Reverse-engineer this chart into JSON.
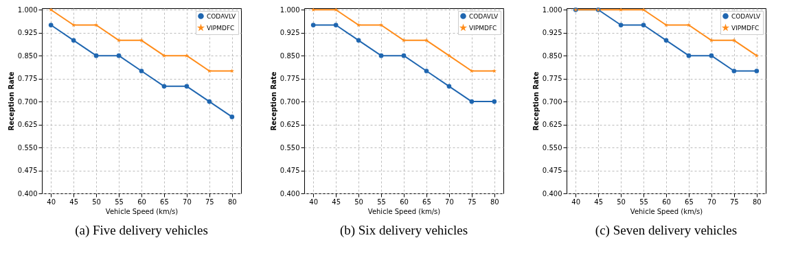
{
  "chart_data": [
    {
      "type": "line",
      "title": "(a)  Five delivery vehicles",
      "xlabel": "Vehicle Speed (km/s)",
      "ylabel": "Reception Rate",
      "x": [
        40,
        45,
        50,
        55,
        60,
        65,
        70,
        75,
        80
      ],
      "xlim": [
        38,
        82
      ],
      "xticks": [
        40,
        45,
        50,
        55,
        60,
        65,
        70,
        75,
        80
      ],
      "ylim": [
        0.4,
        1.005
      ],
      "yticks": [
        {
          "value": 0.4,
          "label": "0.400"
        },
        {
          "value": 0.475,
          "label": "0.475"
        },
        {
          "value": 0.55,
          "label": "0.550"
        },
        {
          "value": 0.625,
          "label": "0.625"
        },
        {
          "value": 0.7,
          "label": "0.700"
        },
        {
          "value": 0.775,
          "label": "0.775"
        },
        {
          "value": 0.85,
          "label": "0.850"
        },
        {
          "value": 0.925,
          "label": "0.925"
        },
        {
          "value": 1.0,
          "label": "1.000"
        }
      ],
      "grid": true,
      "legend": "top right",
      "series": [
        {
          "name": "CODAVLV",
          "color": "#1f66b0",
          "marker": "circle",
          "values": [
            0.95,
            0.9,
            0.85,
            0.85,
            0.8,
            0.75,
            0.75,
            0.7,
            0.65
          ]
        },
        {
          "name": "VIPMDFC",
          "color": "#ff8c1a",
          "marker": "star",
          "values": [
            1.0,
            0.95,
            0.95,
            0.9,
            0.9,
            0.85,
            0.85,
            0.8,
            0.8
          ]
        }
      ]
    },
    {
      "type": "line",
      "title": "(b)  Six delivery vehicles",
      "xlabel": "Vehicle Speed (km/s)",
      "ylabel": "Reception Rate",
      "x": [
        40,
        45,
        50,
        55,
        60,
        65,
        70,
        75,
        80
      ],
      "xlim": [
        38,
        82
      ],
      "xticks": [
        40,
        45,
        50,
        55,
        60,
        65,
        70,
        75,
        80
      ],
      "ylim": [
        0.4,
        1.005
      ],
      "yticks": [
        {
          "value": 0.4,
          "label": "0.400"
        },
        {
          "value": 0.475,
          "label": "0.475"
        },
        {
          "value": 0.55,
          "label": "0.550"
        },
        {
          "value": 0.625,
          "label": "0.625"
        },
        {
          "value": 0.7,
          "label": "0.700"
        },
        {
          "value": 0.775,
          "label": "0.775"
        },
        {
          "value": 0.85,
          "label": "0.850"
        },
        {
          "value": 0.925,
          "label": "0.925"
        },
        {
          "value": 1.0,
          "label": "1.000"
        }
      ],
      "grid": true,
      "legend": "top right",
      "series": [
        {
          "name": "CODAVLV",
          "color": "#1f66b0",
          "marker": "circle",
          "values": [
            0.95,
            0.95,
            0.9,
            0.85,
            0.85,
            0.8,
            0.75,
            0.7,
            0.7
          ]
        },
        {
          "name": "VIPMDFC",
          "color": "#ff8c1a",
          "marker": "star",
          "values": [
            1.0,
            1.0,
            0.95,
            0.95,
            0.9,
            0.9,
            0.85,
            0.8,
            0.8
          ]
        }
      ]
    },
    {
      "type": "line",
      "title": "(c)  Seven delivery vehicles",
      "xlabel": "Vehicle Speed (km/s)",
      "ylabel": "Reception Rate",
      "x": [
        40,
        45,
        50,
        55,
        60,
        65,
        70,
        75,
        80
      ],
      "xlim": [
        38,
        82
      ],
      "xticks": [
        40,
        45,
        50,
        55,
        60,
        65,
        70,
        75,
        80
      ],
      "ylim": [
        0.4,
        1.005
      ],
      "yticks": [
        {
          "value": 0.4,
          "label": "0.400"
        },
        {
          "value": 0.475,
          "label": "0.475"
        },
        {
          "value": 0.55,
          "label": "0.550"
        },
        {
          "value": 0.625,
          "label": "0.625"
        },
        {
          "value": 0.7,
          "label": "0.700"
        },
        {
          "value": 0.775,
          "label": "0.775"
        },
        {
          "value": 0.85,
          "label": "0.850"
        },
        {
          "value": 0.925,
          "label": "0.925"
        },
        {
          "value": 1.0,
          "label": "1.000"
        }
      ],
      "grid": true,
      "legend": "top right",
      "series": [
        {
          "name": "CODAVLV",
          "color": "#1f66b0",
          "marker": "circle",
          "values": [
            1.0,
            1.0,
            0.95,
            0.95,
            0.9,
            0.85,
            0.85,
            0.8,
            0.8
          ]
        },
        {
          "name": "VIPMDFC",
          "color": "#ff8c1a",
          "marker": "star",
          "values": [
            1.0,
            1.0,
            1.0,
            1.0,
            0.95,
            0.95,
            0.9,
            0.9,
            0.85
          ]
        }
      ]
    }
  ]
}
